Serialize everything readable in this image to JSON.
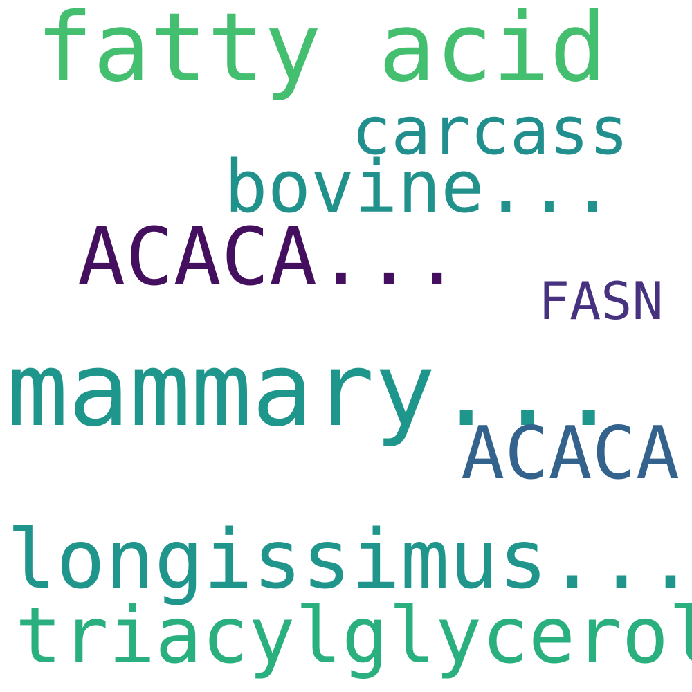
{
  "words": [
    {
      "id": "w-fatty-acid",
      "text": "fatty acid",
      "color": "#44bf70"
    },
    {
      "id": "w-carcass",
      "text": "carcass",
      "color": "#218f8d"
    },
    {
      "id": "w-bovine",
      "text": "bovine...",
      "color": "#21918c"
    },
    {
      "id": "w-acaca-ellipsis",
      "text": "ACACA...",
      "color": "#440f5f"
    },
    {
      "id": "w-fasn",
      "text": "FASN",
      "color": "#46327e"
    },
    {
      "id": "w-mammary",
      "text": "mammary...",
      "color": "#1f968b"
    },
    {
      "id": "w-acaca",
      "text": "ACACA",
      "color": "#33638d"
    },
    {
      "id": "w-longissimus",
      "text": "longissimus...",
      "color": "#1f958b"
    },
    {
      "id": "w-triacylglycerol",
      "text": "triacylglycerol",
      "color": "#2ab07f"
    }
  ]
}
